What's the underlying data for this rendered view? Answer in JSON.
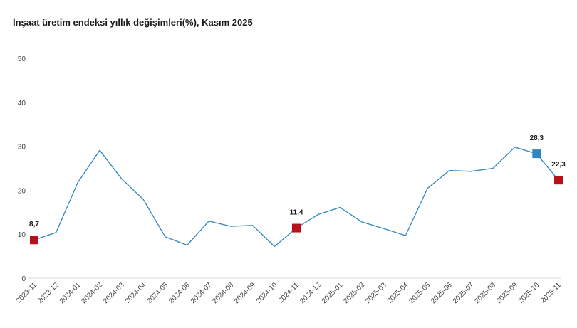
{
  "chart_data": {
    "type": "line",
    "title": "İnşaat üretim endeksi yıllık değişimleri(%), Kasım 2025",
    "xlabel": "",
    "ylabel": "",
    "ylim": [
      0,
      50
    ],
    "yticks": [
      0,
      10,
      20,
      30,
      40,
      50
    ],
    "grid": false,
    "categories": [
      "2023-11",
      "2023-12",
      "2024-01",
      "2024-02",
      "2024-03",
      "2024-04",
      "2024-05",
      "2024-06",
      "2024-07",
      "2024-08",
      "2024-09",
      "2024-10",
      "2024-11",
      "2024-12",
      "2025-01",
      "2025-02",
      "2025-03",
      "2025-04",
      "2025-05",
      "2025-06",
      "2025-07",
      "2025-08",
      "2025-09",
      "2025-10",
      "2025-11"
    ],
    "series": [
      {
        "values": [
          8.7,
          10.4,
          21.8,
          29.1,
          22.6,
          17.9,
          9.4,
          7.5,
          13.0,
          11.8,
          12.0,
          7.2,
          11.4,
          14.5,
          16.1,
          12.8,
          11.3,
          9.7,
          20.4,
          24.5,
          24.3,
          25.0,
          29.8,
          28.3,
          22.3
        ],
        "color": "#2e86c1"
      }
    ],
    "highlights": [
      {
        "index": 0,
        "label": "8,7",
        "color": "#b5121b"
      },
      {
        "index": 12,
        "label": "11,4",
        "color": "#b5121b"
      },
      {
        "index": 23,
        "label": "28,3",
        "color": "#2e86c1"
      },
      {
        "index": 24,
        "label": "22,3",
        "color": "#b5121b"
      }
    ]
  }
}
